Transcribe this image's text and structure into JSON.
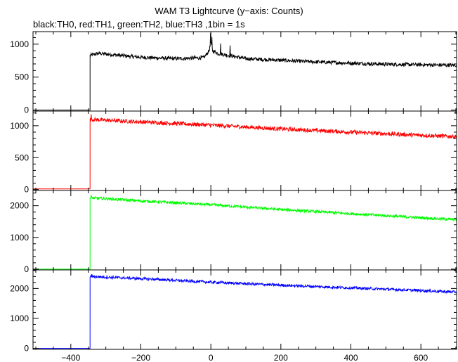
{
  "title": "WAM T3 Lightcurve (y−axis: Counts)",
  "subtitle": "black:TH0, red:TH1, green:TH2, blue:TH3 ,1bin = 1s",
  "chart_data": {
    "type": "line",
    "x_ticks": [
      -400,
      -200,
      0,
      200,
      400,
      600
    ],
    "x_tick_labels": [
      "−400",
      "−200",
      "0",
      "200",
      "400",
      "600"
    ],
    "xlim": [
      -508,
      702
    ],
    "panels": [
      {
        "name": "TH0",
        "color": "#000000",
        "ylim": [
          -15,
          1190
        ],
        "y_ticks": [
          0,
          500,
          1000
        ],
        "y_tick_labels": [
          "0",
          "500",
          "1000"
        ],
        "onset_x": -345,
        "pre_level": 0,
        "profile": [
          [
            -345,
            830
          ],
          [
            -320,
            860
          ],
          [
            -200,
            800
          ],
          [
            -100,
            780
          ],
          [
            -20,
            795
          ],
          [
            -5,
            900
          ],
          [
            0,
            1020
          ],
          [
            5,
            900
          ],
          [
            20,
            860
          ],
          [
            40,
            840
          ],
          [
            100,
            780
          ],
          [
            300,
            730
          ],
          [
            500,
            695
          ],
          [
            700,
            680
          ]
        ],
        "peaks": [
          [
            -1,
            1170
          ],
          [
            3,
            1110
          ],
          [
            28,
            1010
          ],
          [
            55,
            980
          ]
        ],
        "noise": 28
      },
      {
        "name": "TH1",
        "color": "#ff0000",
        "ylim": [
          -15,
          1230
        ],
        "y_ticks": [
          0,
          500,
          1000
        ],
        "y_tick_labels": [
          "0",
          "500",
          "1000"
        ],
        "onset_x": -345,
        "pre_level": 10,
        "profile": [
          [
            -345,
            1100
          ],
          [
            -200,
            1060
          ],
          [
            0,
            1010
          ],
          [
            200,
            950
          ],
          [
            400,
            900
          ],
          [
            600,
            850
          ],
          [
            700,
            830
          ]
        ],
        "peaks": [
          [
            -342,
            1180
          ]
        ],
        "noise": 32
      },
      {
        "name": "TH2",
        "color": "#00ff00",
        "ylim": [
          -25,
          2480
        ],
        "y_ticks": [
          0,
          1000,
          2000
        ],
        "y_tick_labels": [
          "0",
          "1000",
          "2000"
        ],
        "onset_x": -345,
        "pre_level": 0,
        "profile": [
          [
            -345,
            2250
          ],
          [
            -200,
            2150
          ],
          [
            0,
            2030
          ],
          [
            200,
            1880
          ],
          [
            400,
            1750
          ],
          [
            600,
            1620
          ],
          [
            700,
            1560
          ]
        ],
        "peaks": [
          [
            -342,
            2340
          ]
        ],
        "noise": 45
      },
      {
        "name": "TH3",
        "color": "#0000ff",
        "ylim": [
          -35,
          2620
        ],
        "y_ticks": [
          0,
          1000,
          2000
        ],
        "y_tick_labels": [
          "0",
          "1000",
          "2000"
        ],
        "onset_x": -345,
        "pre_level": 0,
        "profile": [
          [
            -345,
            2400
          ],
          [
            -200,
            2330
          ],
          [
            0,
            2210
          ],
          [
            200,
            2110
          ],
          [
            400,
            2020
          ],
          [
            600,
            1930
          ],
          [
            700,
            1880
          ]
        ],
        "peaks": [
          [
            -340,
            2480
          ]
        ],
        "noise": 45
      }
    ]
  }
}
